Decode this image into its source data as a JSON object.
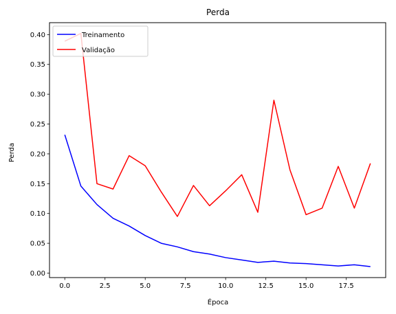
{
  "chart_data": {
    "type": "line",
    "title": "Perda",
    "xlabel": "Época",
    "ylabel": "Perda",
    "xlim": [
      -0.95,
      19.95
    ],
    "ylim": [
      -0.0075,
      0.42
    ],
    "xticks": [
      0.0,
      2.5,
      5.0,
      7.5,
      10.0,
      12.5,
      15.0,
      17.5
    ],
    "xtick_labels": [
      "0.0",
      "2.5",
      "5.0",
      "7.5",
      "10.0",
      "12.5",
      "15.0",
      "17.5"
    ],
    "yticks": [
      0.0,
      0.05,
      0.1,
      0.15,
      0.2,
      0.25,
      0.3,
      0.35,
      0.4
    ],
    "ytick_labels": [
      "0.00",
      "0.05",
      "0.10",
      "0.15",
      "0.20",
      "0.25",
      "0.30",
      "0.35",
      "0.40"
    ],
    "grid": false,
    "legend_position": "top-left",
    "x": [
      0,
      1,
      2,
      3,
      4,
      5,
      6,
      7,
      8,
      9,
      10,
      11,
      12,
      13,
      14,
      15,
      16,
      17,
      18,
      19
    ],
    "series": [
      {
        "name": "Treinamento",
        "color": "#0000ff",
        "values": [
          0.232,
          0.146,
          0.115,
          0.092,
          0.079,
          0.063,
          0.05,
          0.044,
          0.036,
          0.032,
          0.026,
          0.022,
          0.018,
          0.02,
          0.017,
          0.016,
          0.014,
          0.012,
          0.014,
          0.011
        ]
      },
      {
        "name": "Validação",
        "color": "#ff0000",
        "values": [
          0.389,
          0.402,
          0.15,
          0.141,
          0.197,
          0.18,
          0.136,
          0.095,
          0.147,
          0.113,
          0.138,
          0.165,
          0.102,
          0.29,
          0.173,
          0.098,
          0.109,
          0.179,
          0.109,
          0.184
        ]
      }
    ]
  }
}
